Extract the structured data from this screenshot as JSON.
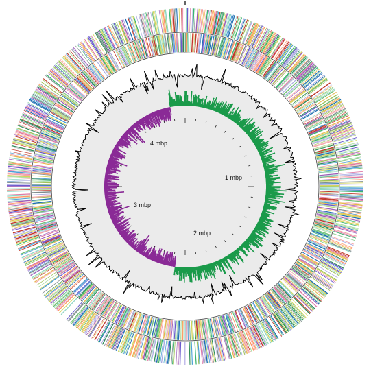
{
  "labels": {
    "mbp1": "1 mbp",
    "mbp2": "2 mbp",
    "mbp3": "3 mbp",
    "mbp4": "4 mbp"
  },
  "tracks": [
    {
      "id": "cds-forward",
      "kind": "gene-ticks",
      "colorful": true
    },
    {
      "id": "cds-reverse",
      "kind": "gene-ticks",
      "colorful": true
    },
    {
      "id": "gc-content",
      "kind": "plot",
      "color": "#000000"
    },
    {
      "id": "gc-skew",
      "kind": "plot",
      "positive_color": "#1a9a4a",
      "negative_color": "#8a2a96"
    }
  ],
  "colors": {
    "gc_skew_positive": "#1a9a4a",
    "gc_skew_negative": "#8a2a96",
    "gc_content": "#000000",
    "ring_outline": "#444444",
    "gene_palette": [
      "#2e8b57",
      "#6fbf73",
      "#8fd6c4",
      "#4b9fd6",
      "#9b59b6",
      "#e07aa5",
      "#c0392b",
      "#e6b84c",
      "#a0c25b",
      "#7f8c8d",
      "#1f6fb2",
      "#b0e0a8",
      "#f4a6a6",
      "#6a5acd",
      "#d4d45a",
      "#3cb371",
      "#a9a9e0",
      "#ff9966"
    ]
  }
}
